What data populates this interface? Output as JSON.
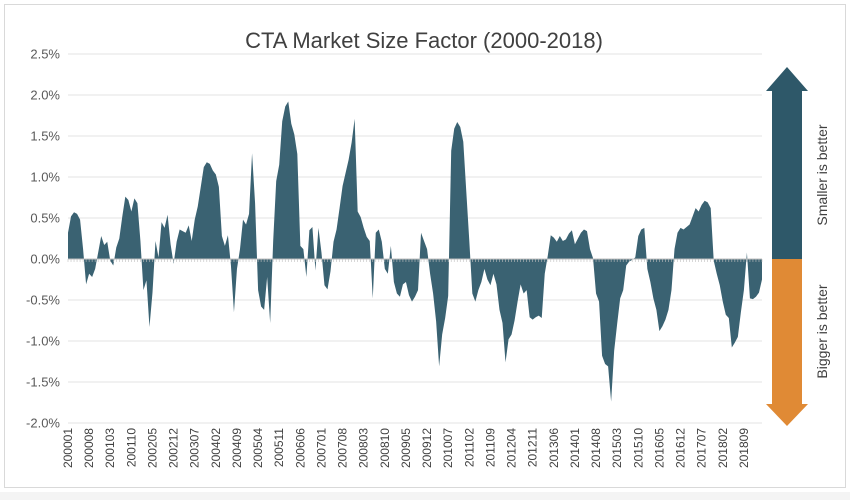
{
  "chart_data": {
    "type": "area",
    "title": "CTA Market Size Factor (2000-2018)",
    "xlabel": "",
    "ylabel": "",
    "ylim": [
      -0.02,
      0.025
    ],
    "y_ticks": [
      "2.5%",
      "2.0%",
      "1.5%",
      "1.0%",
      "0.5%",
      "0.0%",
      "-0.5%",
      "-1.0%",
      "-1.5%",
      "-2.0%"
    ],
    "x_ticks": [
      "200001",
      "200008",
      "200103",
      "200110",
      "200205",
      "200212",
      "200307",
      "200402",
      "200409",
      "200504",
      "200511",
      "200606",
      "200701",
      "200708",
      "200803",
      "200810",
      "200905",
      "200912",
      "201007",
      "201102",
      "201109",
      "201204",
      "201211",
      "201306",
      "201401",
      "201408",
      "201503",
      "201510",
      "201605",
      "201612",
      "201707",
      "201802",
      "201809"
    ],
    "grid": true,
    "legend": "none",
    "series_color": "#3a6272",
    "x_unit": "months",
    "values": [
      0.0032,
      0.0052,
      0.0057,
      0.0055,
      0.0048,
      0.0012,
      -0.0031,
      -0.0018,
      -0.0022,
      -0.0012,
      0.0008,
      0.0028,
      0.0017,
      0.0021,
      -0.0002,
      -0.0008,
      0.0014,
      0.0025,
      0.0052,
      0.0076,
      0.0072,
      0.0058,
      0.0074,
      0.0068,
      0.0022,
      -0.0038,
      -0.0026,
      -0.0083,
      -0.0041,
      0.0022,
      0.0002,
      0.0045,
      0.0038,
      0.0054,
      0.0018,
      -0.0006,
      0.0021,
      0.0036,
      0.0034,
      0.0032,
      0.0041,
      0.0022,
      0.0048,
      0.0064,
      0.0088,
      0.0112,
      0.0118,
      0.0116,
      0.0108,
      0.0103,
      0.0088,
      0.0028,
      0.0016,
      0.0029,
      -0.0008,
      -0.0065,
      -0.0012,
      0.0012,
      0.0048,
      0.0042,
      0.0055,
      0.0129,
      0.0068,
      -0.0038,
      -0.0058,
      -0.0062,
      -0.0022,
      -0.0078,
      0.0022,
      0.0095,
      0.0115,
      0.0168,
      0.0186,
      0.0192,
      0.0165,
      0.0152,
      0.0128,
      0.0016,
      0.0012,
      -0.0022,
      0.0035,
      0.0039,
      -0.0014,
      0.0038,
      0.0008,
      -0.0032,
      -0.0037,
      -0.0015,
      0.0021,
      0.0036,
      0.0062,
      0.0089,
      0.0105,
      0.0121,
      0.0142,
      0.0171,
      0.0058,
      0.0051,
      0.0038,
      0.0027,
      0.0022,
      -0.0048,
      0.0032,
      0.0036,
      0.0021,
      -0.0012,
      -0.0018,
      0.0016,
      -0.0028,
      -0.0042,
      -0.0046,
      -0.0031,
      -0.0028,
      -0.0044,
      -0.0052,
      -0.0046,
      -0.0038,
      0.0032,
      0.0022,
      0.0012,
      -0.0018,
      -0.0042,
      -0.0076,
      -0.0131,
      -0.0092,
      -0.0072,
      -0.0045,
      0.0132,
      0.0159,
      0.0167,
      0.0161,
      0.0143,
      0.0082,
      0.0022,
      -0.0042,
      -0.0052,
      -0.0038,
      -0.0028,
      -0.0012,
      -0.0025,
      -0.0032,
      -0.0018,
      -0.0031,
      -0.0062,
      -0.0078,
      -0.0126,
      -0.0098,
      -0.0092,
      -0.0075,
      -0.0052,
      -0.0031,
      -0.0042,
      -0.0038,
      -0.0071,
      -0.0074,
      -0.0071,
      -0.0069,
      -0.0072,
      -0.0018,
      0.0004,
      0.0029,
      0.0026,
      0.0021,
      0.0028,
      0.0022,
      0.0024,
      0.0031,
      0.0035,
      0.0018,
      0.0025,
      0.0032,
      0.0036,
      0.0034,
      0.0012,
      0.0001,
      -0.0042,
      -0.0052,
      -0.0118,
      -0.0128,
      -0.0131,
      -0.0174,
      -0.0112,
      -0.0079,
      -0.0048,
      -0.0038,
      -0.0008,
      -0.0003,
      -0.0001,
      0.0002,
      0.0028,
      0.0036,
      0.0038,
      -0.0012,
      -0.0028,
      -0.0048,
      -0.0062,
      -0.0088,
      -0.0082,
      -0.0074,
      -0.0062,
      -0.0038,
      0.0012,
      0.0032,
      0.0038,
      0.0036,
      0.0039,
      0.0042,
      0.0052,
      0.0062,
      0.0058,
      0.0066,
      0.0071,
      0.0069,
      0.0062,
      -0.0002,
      -0.0018,
      -0.0032,
      -0.0052,
      -0.0068,
      -0.0072,
      -0.0108,
      -0.0102,
      -0.0095,
      -0.0065,
      -0.0038,
      0.0008,
      -0.0048,
      -0.0049,
      -0.0046,
      -0.0041,
      -0.0025
    ]
  },
  "annotations": {
    "up_label": "Smaller is better",
    "down_label": "Bigger is better",
    "up_color": "#2e5869",
    "down_color": "#e08a35"
  }
}
